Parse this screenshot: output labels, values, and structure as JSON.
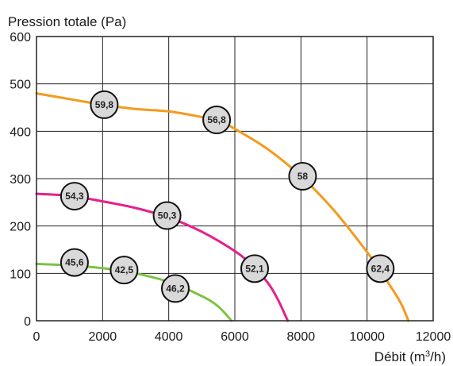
{
  "chart_data": {
    "type": "line",
    "ylabel": "Pression totale (Pa)",
    "xlabel_main": "Débit (m",
    "xlabel_sup": "3",
    "xlabel_end": "/h)",
    "xlim": [
      0,
      12000
    ],
    "ylim": [
      0,
      600
    ],
    "x_ticks": [
      0,
      2000,
      4000,
      6000,
      8000,
      10000,
      12000
    ],
    "x_tick_labels": [
      "0",
      "2000",
      "4000",
      "6000",
      "8000",
      "10000",
      "12000"
    ],
    "y_ticks": [
      0,
      100,
      200,
      300,
      400,
      500,
      600
    ],
    "y_tick_labels": [
      "0",
      "100",
      "200",
      "300",
      "400",
      "500",
      "600"
    ],
    "grid": true,
    "series": [
      {
        "color": "#f39a1f",
        "points": [
          [
            0,
            480
          ],
          [
            1000,
            468
          ],
          [
            2000,
            456
          ],
          [
            3000,
            447
          ],
          [
            4000,
            442
          ],
          [
            5000,
            430
          ],
          [
            5500,
            423
          ],
          [
            6000,
            405
          ],
          [
            7000,
            362
          ],
          [
            8000,
            305
          ],
          [
            9000,
            233
          ],
          [
            10000,
            145
          ],
          [
            10500,
            95
          ],
          [
            11000,
            40
          ],
          [
            11250,
            0
          ]
        ],
        "markers": [
          {
            "x": 2050,
            "y": 456,
            "label": "59,8"
          },
          {
            "x": 5450,
            "y": 424,
            "label": "56,8"
          },
          {
            "x": 8050,
            "y": 305,
            "label": "58"
          },
          {
            "x": 10400,
            "y": 110,
            "label": "62,4"
          }
        ]
      },
      {
        "color": "#e5208a",
        "points": [
          [
            0,
            268
          ],
          [
            1000,
            264
          ],
          [
            2000,
            252
          ],
          [
            3000,
            238
          ],
          [
            4000,
            218
          ],
          [
            5000,
            188
          ],
          [
            6000,
            147
          ],
          [
            6500,
            118
          ],
          [
            7000,
            80
          ],
          [
            7300,
            45
          ],
          [
            7600,
            0
          ]
        ],
        "markers": [
          {
            "x": 1150,
            "y": 263,
            "label": "54,3"
          },
          {
            "x": 3950,
            "y": 222,
            "label": "50,3"
          },
          {
            "x": 6600,
            "y": 110,
            "label": "52,1"
          }
        ]
      },
      {
        "color": "#7dc242",
        "points": [
          [
            0,
            120
          ],
          [
            1000,
            117
          ],
          [
            2000,
            111
          ],
          [
            3000,
            100
          ],
          [
            4000,
            82
          ],
          [
            5000,
            52
          ],
          [
            5500,
            30
          ],
          [
            5900,
            0
          ]
        ],
        "markers": [
          {
            "x": 1150,
            "y": 123,
            "label": "45,6"
          },
          {
            "x": 2650,
            "y": 107,
            "label": "42,5"
          },
          {
            "x": 4200,
            "y": 68,
            "label": "46,2"
          }
        ]
      }
    ]
  }
}
